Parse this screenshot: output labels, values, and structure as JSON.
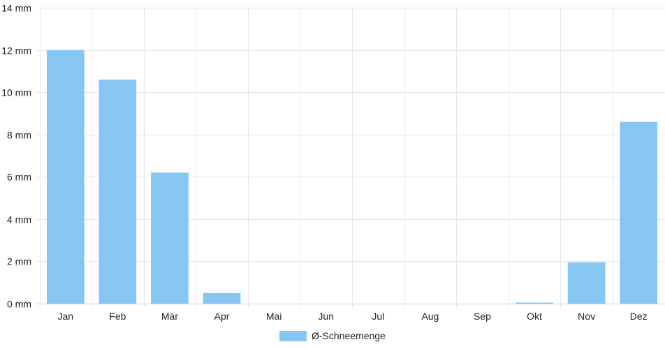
{
  "chart_data": {
    "type": "bar",
    "categories": [
      "Jan",
      "Feb",
      "Mär",
      "Apr",
      "Mai",
      "Jun",
      "Jul",
      "Aug",
      "Sep",
      "Okt",
      "Nov",
      "Dez"
    ],
    "series": [
      {
        "name": "Ø-Schneemenge",
        "values": [
          12.0,
          10.6,
          6.2,
          0.5,
          0,
          0,
          0,
          0,
          0,
          0.05,
          1.95,
          8.6
        ],
        "color": "#88c6f2"
      }
    ],
    "y_unit": "mm",
    "ylim": [
      0,
      14
    ],
    "yticks": [
      0,
      2,
      4,
      6,
      8,
      10,
      12,
      14
    ],
    "grid": true,
    "legend_position": "bottom-center"
  }
}
